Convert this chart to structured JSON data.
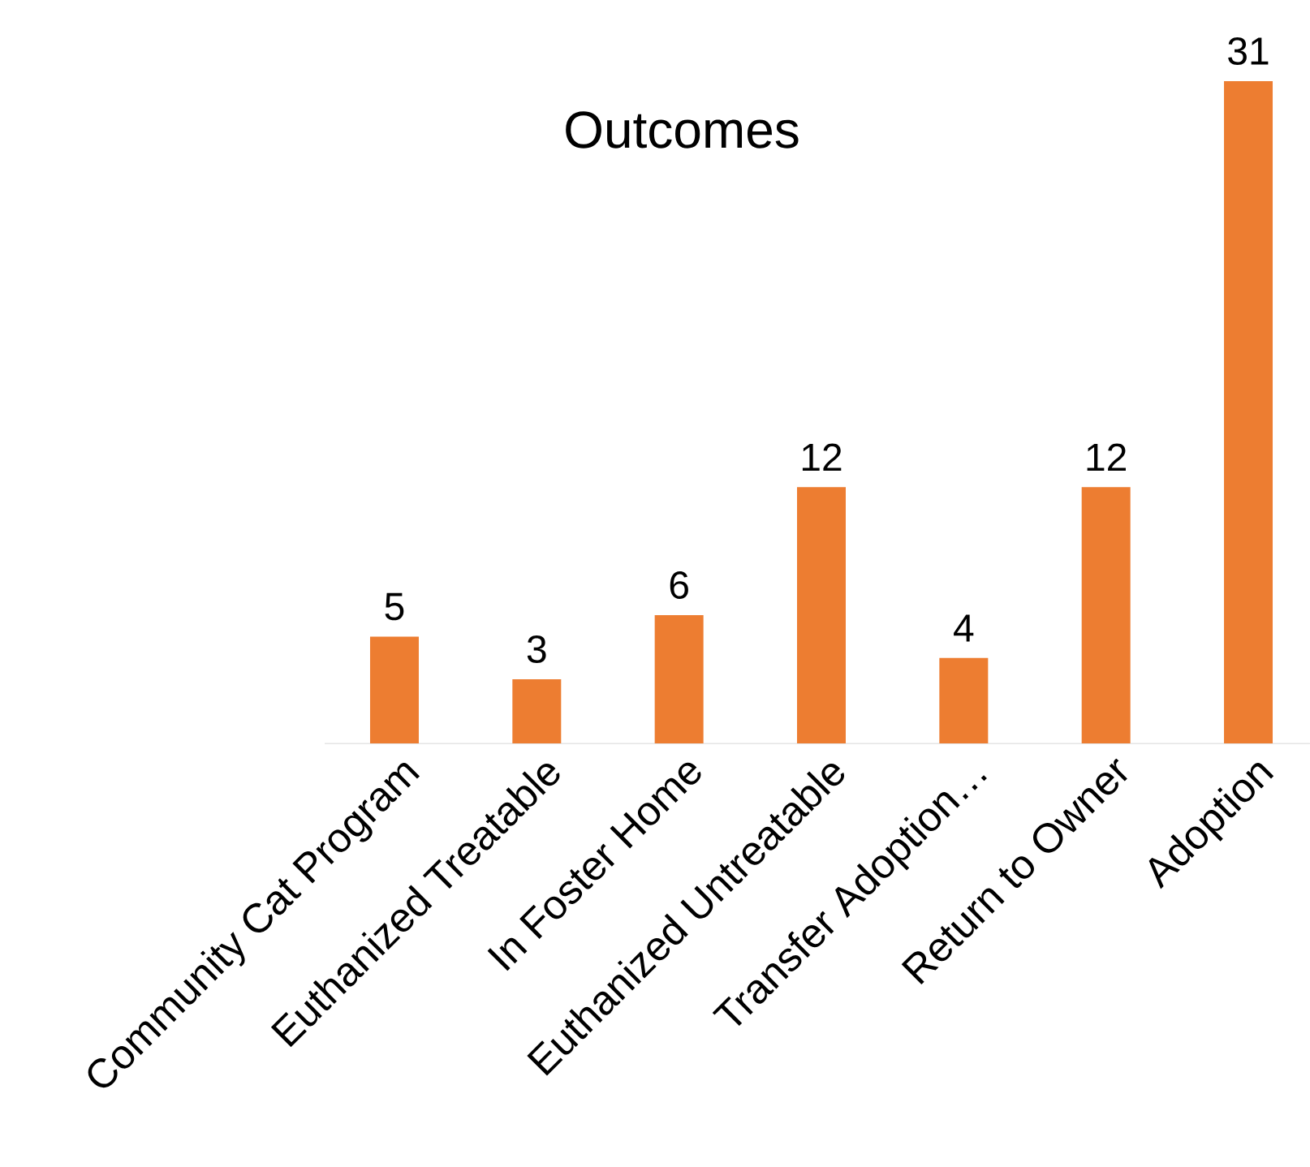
{
  "chart_data": {
    "type": "bar",
    "title": "Outcomes",
    "categories": [
      "Community Cat Program",
      "Euthanized Treatable",
      "In Foster Home",
      "Euthanized Untreatable",
      "Transfer Adoption…",
      "Return to Owner",
      "Adoption"
    ],
    "values": [
      5,
      3,
      6,
      12,
      4,
      12,
      31
    ],
    "color": "#ed7d31",
    "data_labels": true
  }
}
